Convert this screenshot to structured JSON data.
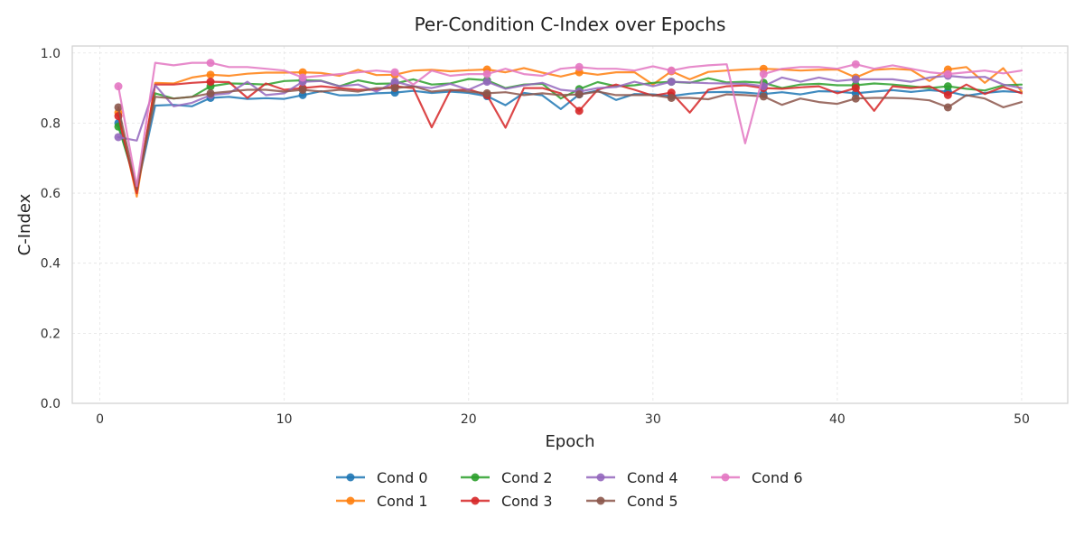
{
  "chart_data": {
    "type": "line",
    "title": "Per-Condition C-Index over Epochs",
    "xlabel": "Epoch",
    "ylabel": "C-Index",
    "xlim": [
      -1.5,
      52.5
    ],
    "ylim": [
      0.0,
      1.02
    ],
    "xticks": [
      0,
      10,
      20,
      30,
      40,
      50
    ],
    "yticks": [
      0.0,
      0.2,
      0.4,
      0.6,
      0.8,
      1.0
    ],
    "grid": true,
    "legend_position": "bottom-center",
    "x": [
      1,
      2,
      3,
      4,
      5,
      6,
      7,
      8,
      9,
      10,
      11,
      12,
      13,
      14,
      15,
      16,
      17,
      18,
      19,
      20,
      21,
      22,
      23,
      24,
      25,
      26,
      27,
      28,
      29,
      30,
      31,
      32,
      33,
      34,
      35,
      36,
      37,
      38,
      39,
      40,
      41,
      42,
      43,
      44,
      45,
      46,
      47,
      48,
      49,
      50
    ],
    "marker_epochs": [
      1,
      6,
      11,
      16,
      21,
      26,
      31,
      36,
      41,
      46
    ],
    "series": [
      {
        "name": "Cond 0",
        "color": "#1f77b4",
        "values": [
          0.8,
          0.61,
          0.85,
          0.852,
          0.848,
          0.872,
          0.875,
          0.869,
          0.871,
          0.869,
          0.88,
          0.891,
          0.879,
          0.88,
          0.885,
          0.887,
          0.892,
          0.886,
          0.89,
          0.886,
          0.877,
          0.851,
          0.886,
          0.879,
          0.84,
          0.882,
          0.893,
          0.866,
          0.883,
          0.882,
          0.877,
          0.884,
          0.888,
          0.889,
          0.887,
          0.883,
          0.888,
          0.882,
          0.891,
          0.89,
          0.885,
          0.89,
          0.894,
          0.889,
          0.894,
          0.89,
          0.878,
          0.886,
          0.891,
          0.888
        ]
      },
      {
        "name": "Cond 1",
        "color": "#ff7f0e",
        "values": [
          0.83,
          0.59,
          0.915,
          0.913,
          0.93,
          0.938,
          0.935,
          0.941,
          0.944,
          0.944,
          0.945,
          0.943,
          0.935,
          0.952,
          0.937,
          0.938,
          0.95,
          0.952,
          0.948,
          0.951,
          0.953,
          0.945,
          0.957,
          0.944,
          0.933,
          0.945,
          0.938,
          0.945,
          0.945,
          0.91,
          0.948,
          0.925,
          0.946,
          0.95,
          0.953,
          0.955,
          0.953,
          0.95,
          0.952,
          0.953,
          0.93,
          0.952,
          0.955,
          0.952,
          0.92,
          0.953,
          0.96,
          0.915,
          0.957,
          0.89
        ]
      },
      {
        "name": "Cond 2",
        "color": "#2ca02c",
        "values": [
          0.79,
          0.62,
          0.885,
          0.87,
          0.875,
          0.905,
          0.913,
          0.912,
          0.91,
          0.92,
          0.922,
          0.921,
          0.905,
          0.922,
          0.912,
          0.913,
          0.925,
          0.91,
          0.913,
          0.926,
          0.922,
          0.9,
          0.91,
          0.912,
          0.87,
          0.897,
          0.917,
          0.905,
          0.908,
          0.915,
          0.918,
          0.915,
          0.928,
          0.916,
          0.918,
          0.915,
          0.9,
          0.91,
          0.912,
          0.908,
          0.908,
          0.913,
          0.91,
          0.905,
          0.9,
          0.905,
          0.898,
          0.893,
          0.908,
          0.91
        ]
      },
      {
        "name": "Cond 3",
        "color": "#d62728",
        "values": [
          0.82,
          0.6,
          0.91,
          0.91,
          0.915,
          0.918,
          0.917,
          0.872,
          0.913,
          0.895,
          0.9,
          0.905,
          0.9,
          0.895,
          0.895,
          0.905,
          0.9,
          0.788,
          0.893,
          0.896,
          0.88,
          0.787,
          0.9,
          0.9,
          0.885,
          0.835,
          0.895,
          0.91,
          0.895,
          0.878,
          0.887,
          0.83,
          0.895,
          0.905,
          0.908,
          0.9,
          0.898,
          0.902,
          0.905,
          0.885,
          0.9,
          0.835,
          0.905,
          0.9,
          0.905,
          0.88,
          0.91,
          0.883,
          0.903,
          0.885
        ]
      },
      {
        "name": "Cond 4",
        "color": "#9467bd",
        "values": [
          0.76,
          0.75,
          0.908,
          0.848,
          0.858,
          0.88,
          0.885,
          0.918,
          0.88,
          0.885,
          0.918,
          0.92,
          0.905,
          0.91,
          0.89,
          0.918,
          0.905,
          0.9,
          0.912,
          0.895,
          0.918,
          0.898,
          0.908,
          0.915,
          0.895,
          0.89,
          0.9,
          0.903,
          0.918,
          0.905,
          0.918,
          0.916,
          0.914,
          0.913,
          0.912,
          0.905,
          0.93,
          0.918,
          0.93,
          0.92,
          0.925,
          0.925,
          0.925,
          0.918,
          0.93,
          0.935,
          0.93,
          0.932,
          0.91,
          0.9
        ]
      },
      {
        "name": "Cond 5",
        "color": "#8c564b",
        "values": [
          0.845,
          0.61,
          0.875,
          0.87,
          0.875,
          0.885,
          0.89,
          0.895,
          0.895,
          0.89,
          0.895,
          0.89,
          0.895,
          0.89,
          0.9,
          0.9,
          0.905,
          0.89,
          0.895,
          0.89,
          0.885,
          0.888,
          0.88,
          0.885,
          0.88,
          0.882,
          0.89,
          0.88,
          0.88,
          0.88,
          0.872,
          0.872,
          0.868,
          0.882,
          0.88,
          0.876,
          0.852,
          0.87,
          0.86,
          0.855,
          0.87,
          0.872,
          0.872,
          0.87,
          0.865,
          0.845,
          0.88,
          0.87,
          0.845,
          0.86
        ]
      },
      {
        "name": "Cond 6",
        "color": "#e377c2",
        "values": [
          0.905,
          0.62,
          0.972,
          0.965,
          0.972,
          0.972,
          0.96,
          0.96,
          0.955,
          0.95,
          0.93,
          0.935,
          0.94,
          0.945,
          0.95,
          0.945,
          0.91,
          0.95,
          0.935,
          0.94,
          0.94,
          0.955,
          0.94,
          0.935,
          0.955,
          0.96,
          0.955,
          0.955,
          0.95,
          0.962,
          0.95,
          0.96,
          0.965,
          0.968,
          0.742,
          0.94,
          0.955,
          0.96,
          0.96,
          0.955,
          0.968,
          0.955,
          0.965,
          0.955,
          0.945,
          0.94,
          0.945,
          0.95,
          0.942,
          0.95
        ]
      }
    ]
  }
}
